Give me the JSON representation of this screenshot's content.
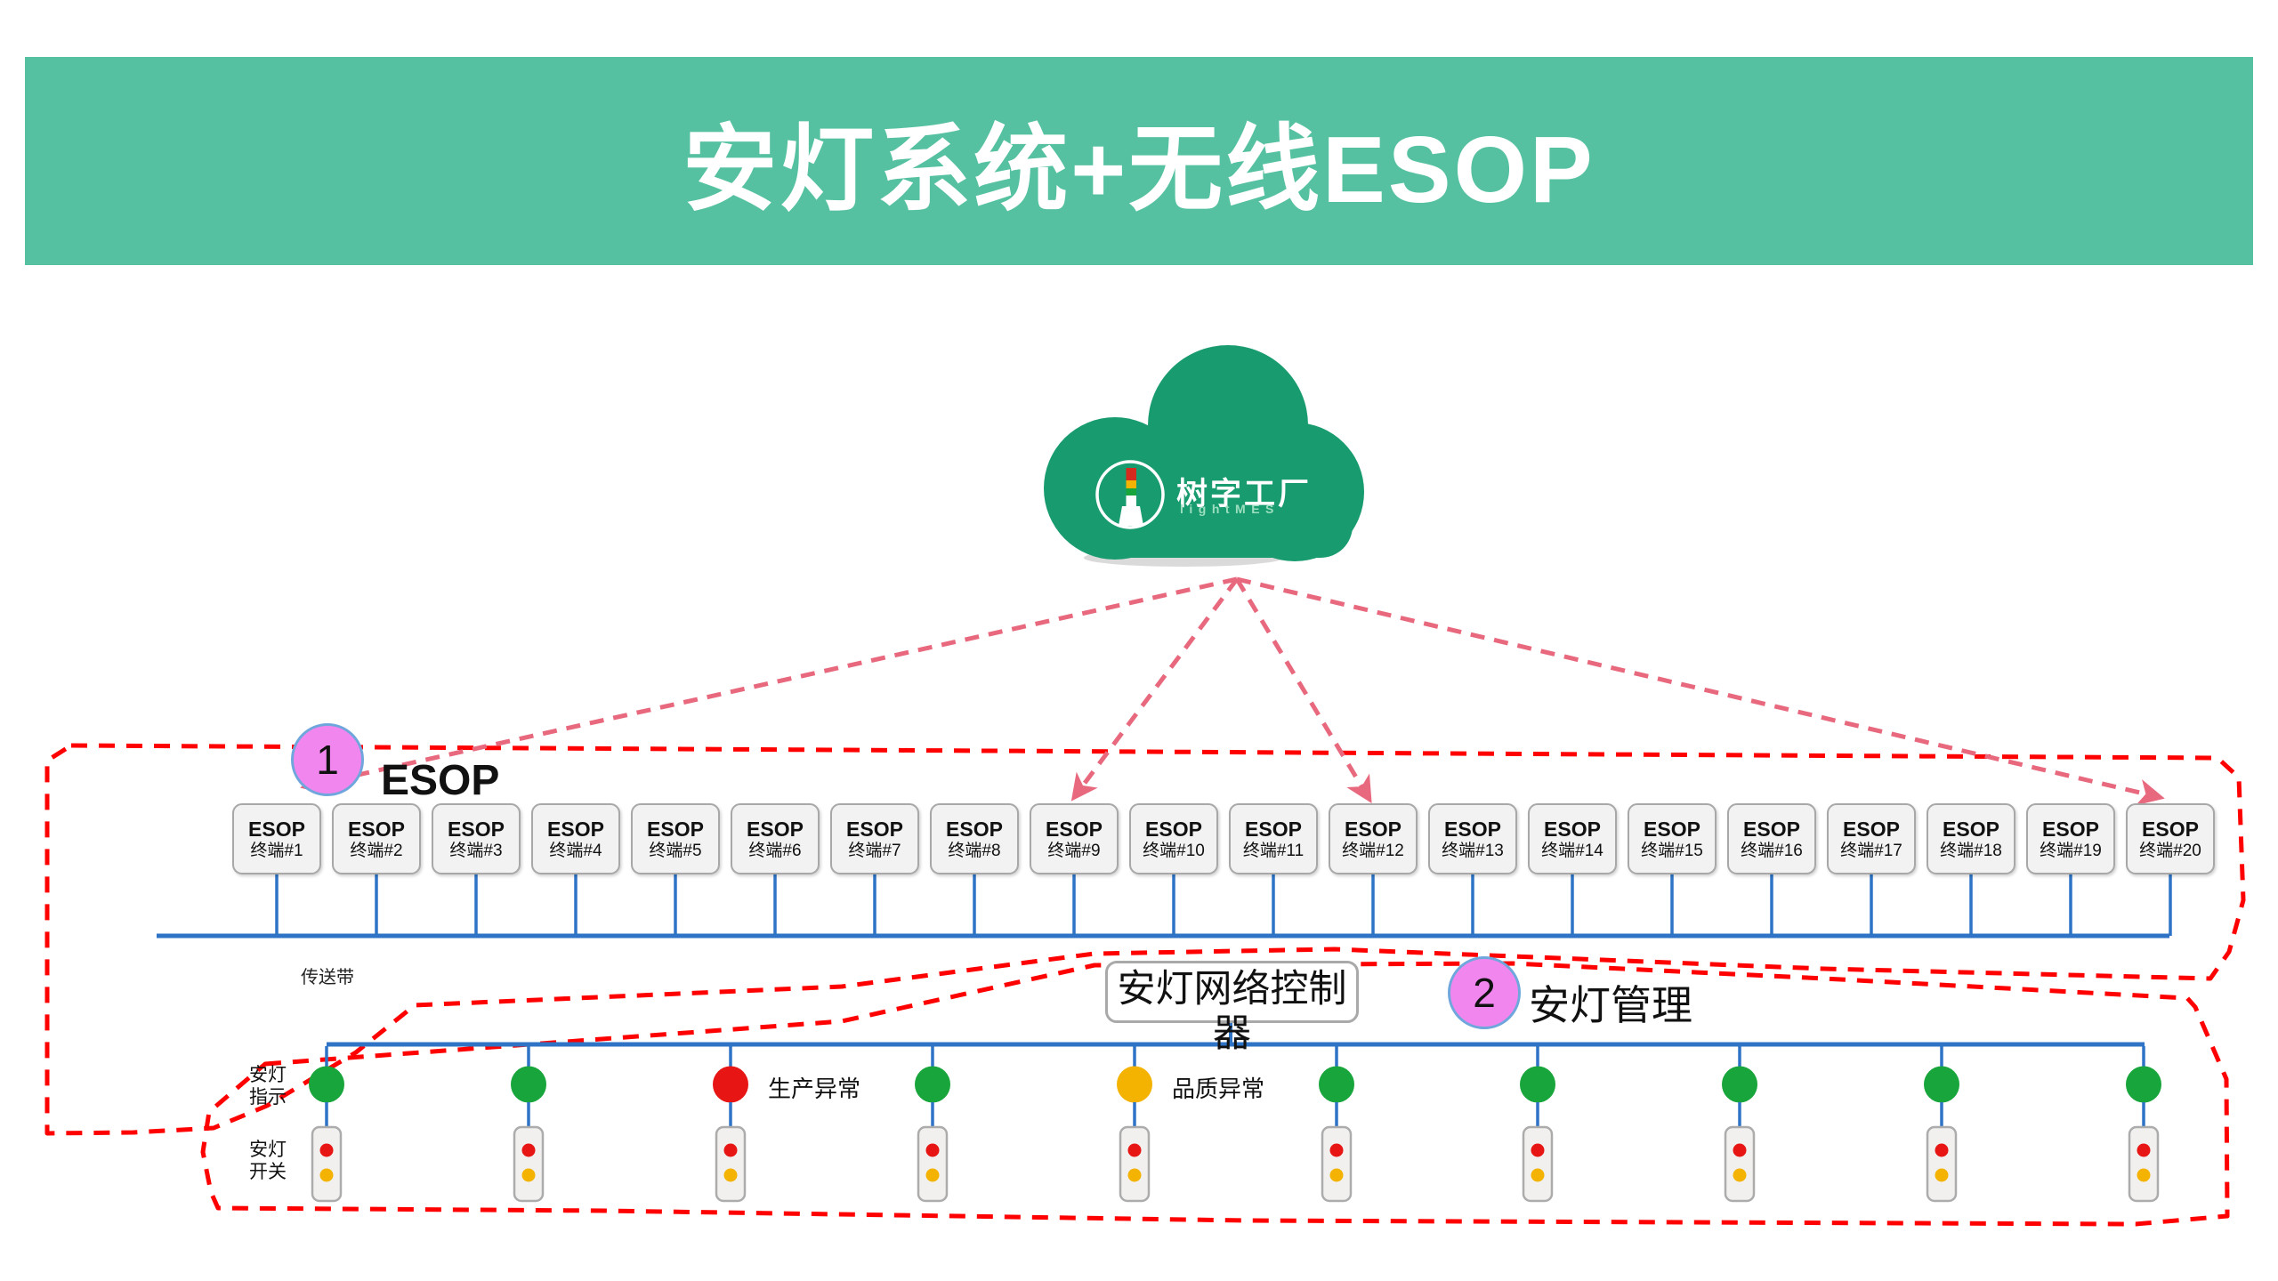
{
  "header": {
    "title": "安灯系统+无线ESOP",
    "bg_color": "#55C1A0",
    "text_color": "#FFFFFF"
  },
  "cloud": {
    "brand": "树字工厂",
    "sub_brand": "lightMES",
    "body_color": "#189B6E",
    "tower_icon_colors": [
      "#D42B1E",
      "#F3B300",
      "#18A53C"
    ]
  },
  "esop_section": {
    "badge": "1",
    "section_label": "ESOP",
    "terminals": [
      {
        "line1": "ESOP",
        "line2": "终端#1"
      },
      {
        "line1": "ESOP",
        "line2": "终端#2"
      },
      {
        "line1": "ESOP",
        "line2": "终端#3"
      },
      {
        "line1": "ESOP",
        "line2": "终端#4"
      },
      {
        "line1": "ESOP",
        "line2": "终端#5"
      },
      {
        "line1": "ESOP",
        "line2": "终端#6"
      },
      {
        "line1": "ESOP",
        "line2": "终端#7"
      },
      {
        "line1": "ESOP",
        "line2": "终端#8"
      },
      {
        "line1": "ESOP",
        "line2": "终端#9"
      },
      {
        "line1": "ESOP",
        "line2": "终端#10"
      },
      {
        "line1": "ESOP",
        "line2": "终端#11"
      },
      {
        "line1": "ESOP",
        "line2": "终端#12"
      },
      {
        "line1": "ESOP",
        "line2": "终端#13"
      },
      {
        "line1": "ESOP",
        "line2": "终端#14"
      },
      {
        "line1": "ESOP",
        "line2": "终端#15"
      },
      {
        "line1": "ESOP",
        "line2": "终端#16"
      },
      {
        "line1": "ESOP",
        "line2": "终端#17"
      },
      {
        "line1": "ESOP",
        "line2": "终端#18"
      },
      {
        "line1": "ESOP",
        "line2": "终端#19"
      },
      {
        "line1": "ESOP",
        "line2": "终端#20"
      }
    ]
  },
  "conveyor_label": "传送带",
  "controller_label": "安灯网络控制器",
  "andon_section": {
    "badge": "2",
    "section_label": "安灯管理",
    "indicator_label": "安灯\n指示",
    "switch_label": "安灯\n开关",
    "stations": [
      {
        "status": "green",
        "note": ""
      },
      {
        "status": "green",
        "note": ""
      },
      {
        "status": "red",
        "note": "生产异常"
      },
      {
        "status": "green",
        "note": ""
      },
      {
        "status": "yellow",
        "note": "品质异常"
      },
      {
        "status": "green",
        "note": ""
      },
      {
        "status": "green",
        "note": ""
      },
      {
        "status": "green",
        "note": ""
      },
      {
        "status": "green",
        "note": ""
      },
      {
        "status": "green",
        "note": ""
      }
    ]
  },
  "colors": {
    "green_light": "#18A53C",
    "red_light": "#E81515",
    "yellow_light": "#F3B300",
    "line_blue": "#2E73C5",
    "dash_red": "#FF0000",
    "arrow_pink": "#E8697D",
    "badge_fill": "#F186EE",
    "badge_border": "#6FA7DC"
  }
}
